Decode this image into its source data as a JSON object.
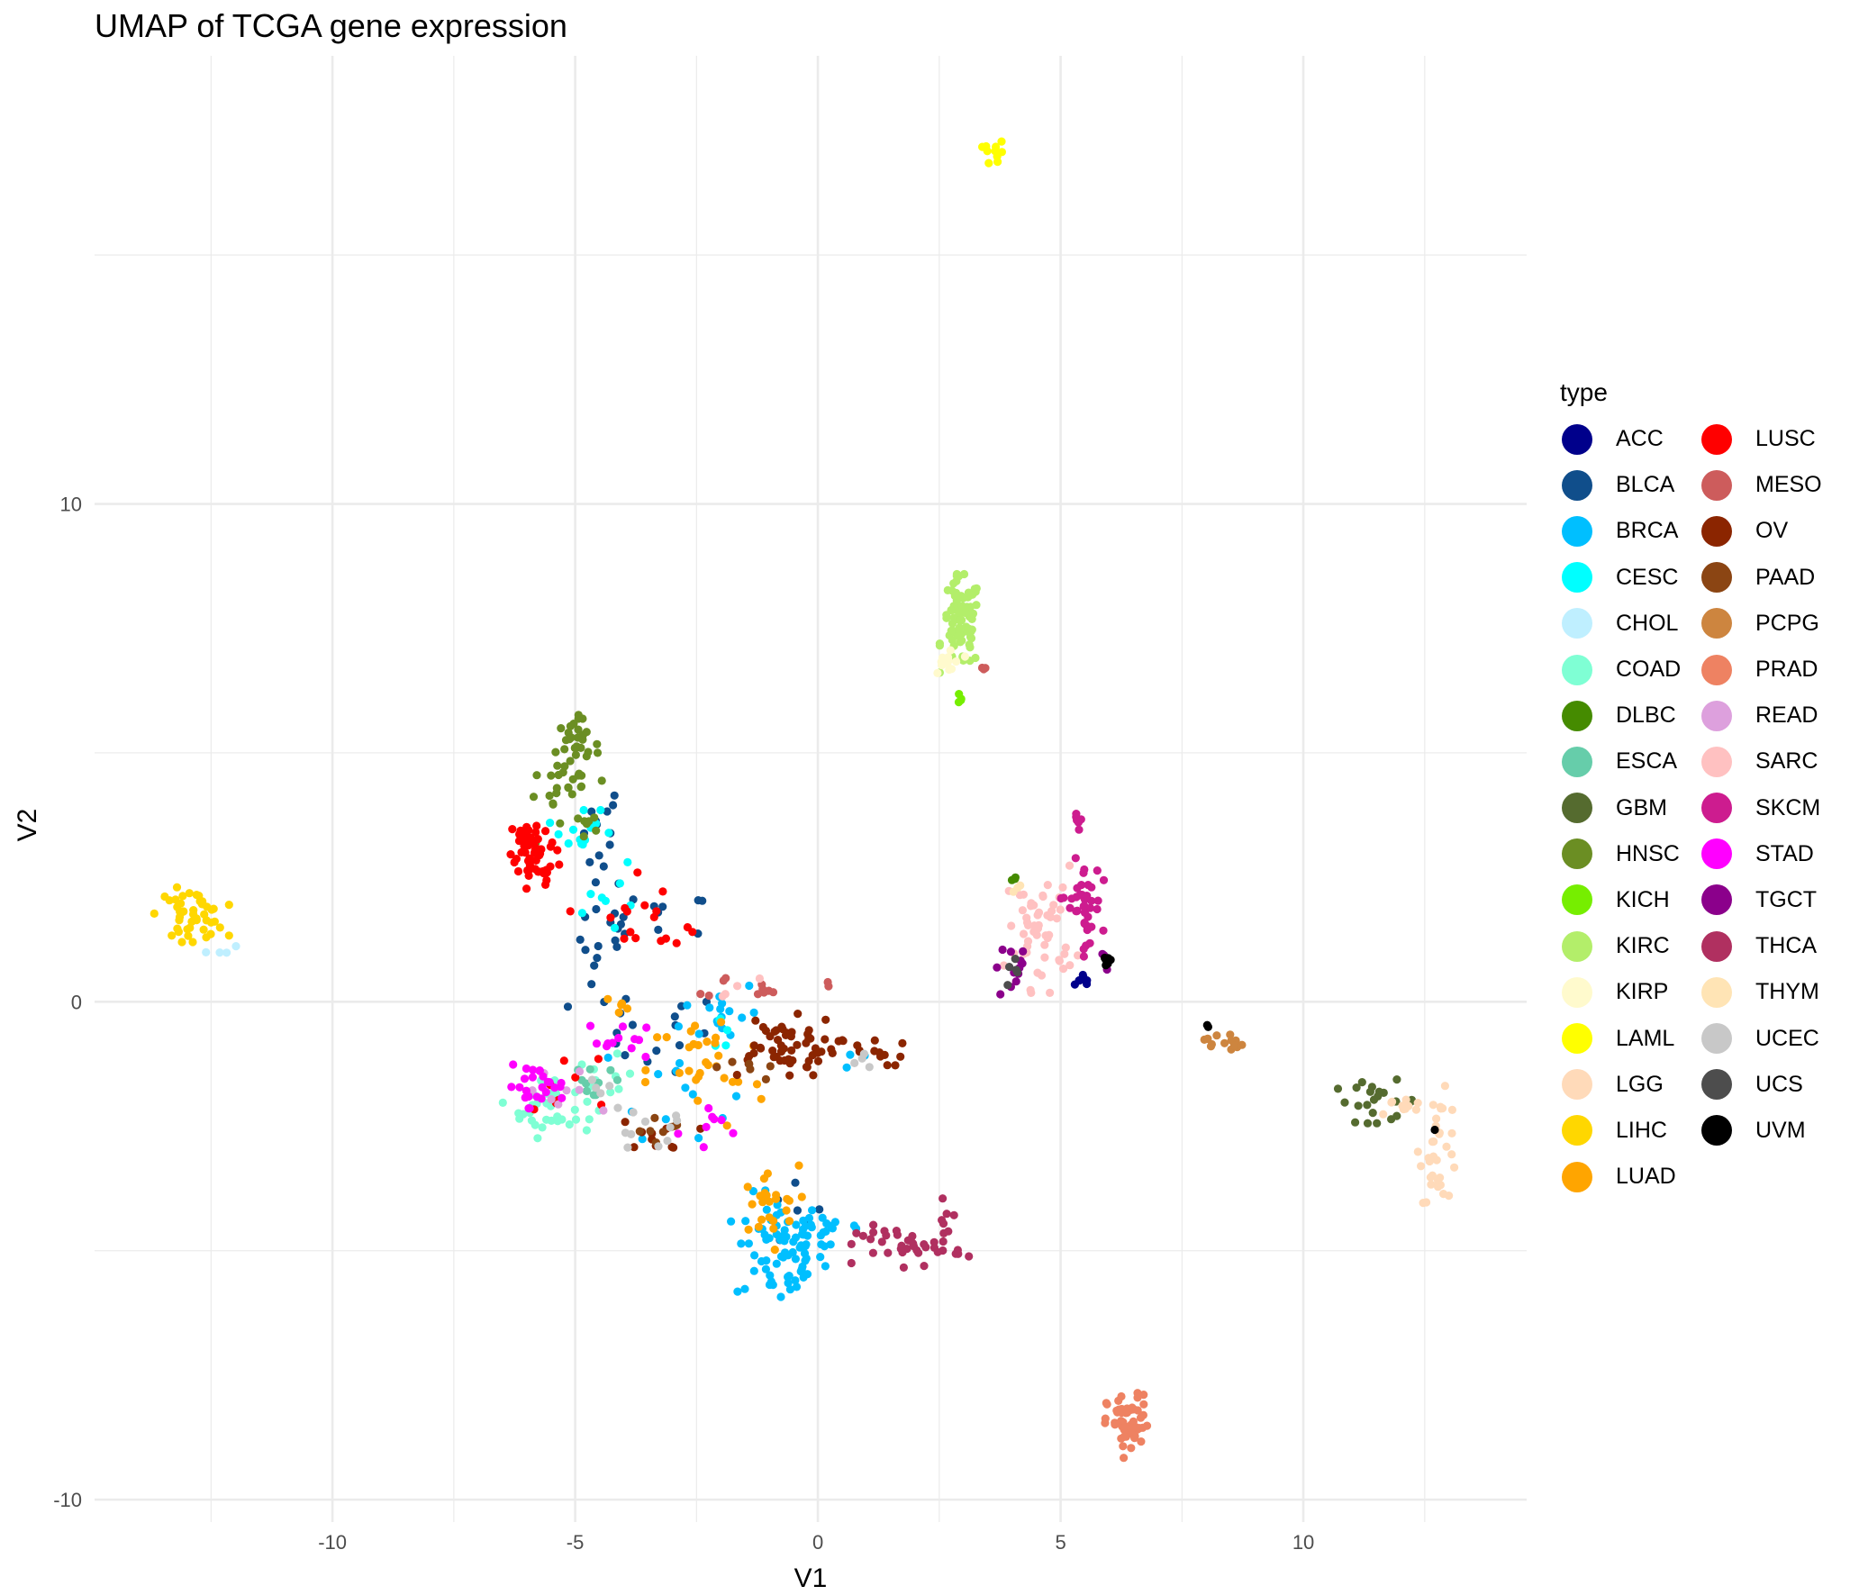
{
  "title": "UMAP of TCGA gene expression",
  "chart_data": {
    "type": "scatter",
    "title": "UMAP of TCGA gene expression",
    "xlabel": "V1",
    "ylabel": "V2",
    "xlim": [
      -14.9,
      14.6
    ],
    "ylim": [
      -10.45,
      19.0
    ],
    "x_ticks": [
      -10,
      -5,
      0,
      5,
      10
    ],
    "y_ticks": [
      -10,
      0,
      10
    ],
    "x_tick_labels": [
      "-10",
      "-5",
      "0",
      "5",
      "10"
    ],
    "y_tick_labels": [
      "-10",
      "0",
      "10"
    ],
    "grid": true,
    "legend_title": "type",
    "legend_position": "right",
    "series": [
      {
        "name": "ACC",
        "color": "#00008B",
        "clusters": [
          {
            "x": 5.5,
            "y": 0.4,
            "sx": 0.1,
            "sy": 0.1,
            "n": 8
          }
        ]
      },
      {
        "name": "BLCA",
        "color": "#104E8B",
        "clusters": [
          {
            "x": -4.5,
            "y": 3.5,
            "sx": 0.25,
            "sy": 0.5,
            "n": 12
          },
          {
            "x": -4.3,
            "y": 1.3,
            "sx": 0.3,
            "sy": 0.7,
            "n": 18
          },
          {
            "x": -3.2,
            "y": 1.6,
            "sx": 0.5,
            "sy": 0.3,
            "n": 10
          },
          {
            "x": -3.5,
            "y": -0.6,
            "sx": 0.8,
            "sy": 0.4,
            "n": 15
          },
          {
            "x": -0.5,
            "y": -4.3,
            "sx": 0.3,
            "sy": 0.4,
            "n": 6
          }
        ]
      },
      {
        "name": "BRCA",
        "color": "#00BFFF",
        "clusters": [
          {
            "x": -0.8,
            "y": -5.0,
            "sx": 0.45,
            "sy": 0.55,
            "n": 70
          },
          {
            "x": 0.2,
            "y": -4.6,
            "sx": 0.5,
            "sy": 0.25,
            "n": 20
          },
          {
            "x": -2.0,
            "y": -0.2,
            "sx": 0.4,
            "sy": 0.35,
            "n": 16
          },
          {
            "x": -3.0,
            "y": -1.7,
            "sx": 0.6,
            "sy": 0.5,
            "n": 12
          },
          {
            "x": 0.8,
            "y": -1.1,
            "sx": 0.2,
            "sy": 0.1,
            "n": 4
          }
        ]
      },
      {
        "name": "CESC",
        "color": "#00FFFF",
        "clusters": [
          {
            "x": -4.8,
            "y": 3.3,
            "sx": 0.4,
            "sy": 0.25,
            "n": 14
          },
          {
            "x": -4.4,
            "y": 2.1,
            "sx": 0.3,
            "sy": 0.4,
            "n": 7
          },
          {
            "x": -2.0,
            "y": -0.6,
            "sx": 0.3,
            "sy": 0.3,
            "n": 5
          }
        ]
      },
      {
        "name": "CHOL",
        "color": "#BFEFFF",
        "clusters": [
          {
            "x": -12.3,
            "y": 1.05,
            "sx": 0.15,
            "sy": 0.08,
            "n": 4
          }
        ]
      },
      {
        "name": "COAD",
        "color": "#7FFFD4",
        "clusters": [
          {
            "x": -5.5,
            "y": -2.1,
            "sx": 0.45,
            "sy": 0.3,
            "n": 35
          },
          {
            "x": -4.4,
            "y": -1.7,
            "sx": 0.3,
            "sy": 0.3,
            "n": 10
          }
        ]
      },
      {
        "name": "DLBC",
        "color": "#458B00",
        "clusters": [
          {
            "x": 4.05,
            "y": 2.45,
            "sx": 0.05,
            "sy": 0.06,
            "n": 3
          }
        ]
      },
      {
        "name": "ESCA",
        "color": "#66CDAA",
        "clusters": [
          {
            "x": -4.6,
            "y": -1.5,
            "sx": 0.35,
            "sy": 0.3,
            "n": 10
          }
        ]
      },
      {
        "name": "GBM",
        "color": "#556B2F",
        "clusters": [
          {
            "x": 11.5,
            "y": -2.0,
            "sx": 0.45,
            "sy": 0.2,
            "n": 22
          }
        ]
      },
      {
        "name": "HNSC",
        "color": "#6B8E23",
        "clusters": [
          {
            "x": -5.0,
            "y": 5.1,
            "sx": 0.25,
            "sy": 0.3,
            "n": 35
          },
          {
            "x": -5.3,
            "y": 4.3,
            "sx": 0.35,
            "sy": 0.3,
            "n": 15
          },
          {
            "x": -4.8,
            "y": 3.6,
            "sx": 0.25,
            "sy": 0.25,
            "n": 8
          },
          {
            "x": -5.9,
            "y": 3.25,
            "sx": 0.08,
            "sy": 0.1,
            "n": 3
          }
        ]
      },
      {
        "name": "KICH",
        "color": "#76EE00",
        "clusters": [
          {
            "x": 2.95,
            "y": 6.1,
            "sx": 0.05,
            "sy": 0.08,
            "n": 4
          }
        ]
      },
      {
        "name": "KIRC",
        "color": "#B3EE6A",
        "clusters": [
          {
            "x": 2.95,
            "y": 7.6,
            "sx": 0.2,
            "sy": 0.45,
            "n": 80
          }
        ]
      },
      {
        "name": "KIRP",
        "color": "#FFFACD",
        "clusters": [
          {
            "x": 2.7,
            "y": 6.8,
            "sx": 0.15,
            "sy": 0.2,
            "n": 14
          }
        ]
      },
      {
        "name": "LAML",
        "color": "#FFFF00",
        "clusters": [
          {
            "x": 3.65,
            "y": 17.05,
            "sx": 0.12,
            "sy": 0.12,
            "n": 10
          }
        ]
      },
      {
        "name": "LGG",
        "color": "#FFDAB9",
        "clusters": [
          {
            "x": 12.8,
            "y": -2.9,
            "sx": 0.2,
            "sy": 0.55,
            "n": 35
          },
          {
            "x": 12.0,
            "y": -2.1,
            "sx": 0.25,
            "sy": 0.12,
            "n": 10
          }
        ]
      },
      {
        "name": "LIHC",
        "color": "#FFD700",
        "clusters": [
          {
            "x": -12.9,
            "y": 1.75,
            "sx": 0.35,
            "sy": 0.25,
            "n": 45
          }
        ]
      },
      {
        "name": "LUAD",
        "color": "#FFA500",
        "clusters": [
          {
            "x": -1.1,
            "y": -4.1,
            "sx": 0.35,
            "sy": 0.4,
            "n": 25
          },
          {
            "x": -2.3,
            "y": -1.4,
            "sx": 0.6,
            "sy": 0.6,
            "n": 30
          },
          {
            "x": -4.0,
            "y": -0.2,
            "sx": 0.3,
            "sy": 0.3,
            "n": 5
          }
        ]
      },
      {
        "name": "LUSC",
        "color": "#FF0000",
        "clusters": [
          {
            "x": -5.9,
            "y": 3.2,
            "sx": 0.25,
            "sy": 0.25,
            "n": 40
          },
          {
            "x": -5.7,
            "y": 2.6,
            "sx": 0.25,
            "sy": 0.2,
            "n": 20
          },
          {
            "x": -4.0,
            "y": 1.7,
            "sx": 0.5,
            "sy": 0.5,
            "n": 12
          },
          {
            "x": -3.0,
            "y": 1.4,
            "sx": 0.35,
            "sy": 0.2,
            "n": 5
          },
          {
            "x": -5.0,
            "y": -1.5,
            "sx": 0.5,
            "sy": 0.4,
            "n": 8
          }
        ]
      },
      {
        "name": "MESO",
        "color": "#CD5C5C",
        "clusters": [
          {
            "x": -1.1,
            "y": 0.3,
            "sx": 0.6,
            "sy": 0.12,
            "n": 12
          },
          {
            "x": 3.45,
            "y": 6.6,
            "sx": 0.03,
            "sy": 0.1,
            "n": 3
          }
        ]
      },
      {
        "name": "OV",
        "color": "#8B2500",
        "clusters": [
          {
            "x": -0.8,
            "y": -0.9,
            "sx": 0.6,
            "sy": 0.3,
            "n": 55
          },
          {
            "x": 1.0,
            "y": -1.0,
            "sx": 0.4,
            "sy": 0.15,
            "n": 14
          },
          {
            "x": -3.3,
            "y": -2.7,
            "sx": 0.4,
            "sy": 0.15,
            "n": 10
          }
        ]
      },
      {
        "name": "PAAD",
        "color": "#8B4513",
        "clusters": [
          {
            "x": -3.3,
            "y": -2.6,
            "sx": 0.3,
            "sy": 0.15,
            "n": 8
          },
          {
            "x": -1.5,
            "y": -1.3,
            "sx": 0.3,
            "sy": 0.2,
            "n": 6
          }
        ]
      },
      {
        "name": "PCPG",
        "color": "#CD853F",
        "clusters": [
          {
            "x": 8.35,
            "y": -0.8,
            "sx": 0.2,
            "sy": 0.1,
            "n": 14
          }
        ]
      },
      {
        "name": "PRAD",
        "color": "#EE8262",
        "clusters": [
          {
            "x": 6.4,
            "y": -8.5,
            "sx": 0.22,
            "sy": 0.3,
            "n": 60
          }
        ]
      },
      {
        "name": "READ",
        "color": "#DDA0DD",
        "clusters": [
          {
            "x": -5.3,
            "y": -1.9,
            "sx": 0.4,
            "sy": 0.3,
            "n": 8
          }
        ]
      },
      {
        "name": "SARC",
        "color": "#FFC1C1",
        "clusters": [
          {
            "x": 4.6,
            "y": 1.5,
            "sx": 0.35,
            "sy": 0.6,
            "n": 55
          },
          {
            "x": -1.5,
            "y": 0.3,
            "sx": 0.3,
            "sy": 0.1,
            "n": 4
          }
        ]
      },
      {
        "name": "SKCM",
        "color": "#CD1C8F",
        "clusters": [
          {
            "x": 5.45,
            "y": 1.9,
            "sx": 0.2,
            "sy": 0.45,
            "n": 40
          },
          {
            "x": 5.35,
            "y": 3.7,
            "sx": 0.08,
            "sy": 0.12,
            "n": 7
          }
        ]
      },
      {
        "name": "STAD",
        "color": "#FF00FF",
        "clusters": [
          {
            "x": -5.8,
            "y": -1.7,
            "sx": 0.3,
            "sy": 0.2,
            "n": 25
          },
          {
            "x": -4.0,
            "y": -0.8,
            "sx": 0.4,
            "sy": 0.2,
            "n": 12
          },
          {
            "x": -2.0,
            "y": -2.5,
            "sx": 0.4,
            "sy": 0.3,
            "n": 8
          }
        ]
      },
      {
        "name": "TGCT",
        "color": "#8B008B",
        "clusters": [
          {
            "x": 4.1,
            "y": 0.7,
            "sx": 0.25,
            "sy": 0.25,
            "n": 12
          },
          {
            "x": 5.9,
            "y": 0.8,
            "sx": 0.05,
            "sy": 0.1,
            "n": 3
          }
        ]
      },
      {
        "name": "THCA",
        "color": "#B03060",
        "clusters": [
          {
            "x": 1.9,
            "y": -4.9,
            "sx": 0.55,
            "sy": 0.2,
            "n": 35
          },
          {
            "x": 2.65,
            "y": -4.5,
            "sx": 0.2,
            "sy": 0.25,
            "n": 10
          }
        ]
      },
      {
        "name": "THYM",
        "color": "#FFE4B5",
        "clusters": [
          {
            "x": 4.0,
            "y": 2.3,
            "sx": 0.1,
            "sy": 0.08,
            "n": 3
          }
        ]
      },
      {
        "name": "UCEC",
        "color": "#C8C8C8",
        "clusters": [
          {
            "x": -3.5,
            "y": -2.6,
            "sx": 0.5,
            "sy": 0.2,
            "n": 10
          },
          {
            "x": 1.0,
            "y": -1.2,
            "sx": 0.2,
            "sy": 0.1,
            "n": 4
          },
          {
            "x": -4.3,
            "y": -1.8,
            "sx": 0.2,
            "sy": 0.2,
            "n": 5
          }
        ]
      },
      {
        "name": "UCS",
        "color": "#4D4D4D",
        "clusters": [
          {
            "x": 4.1,
            "y": 0.6,
            "sx": 0.15,
            "sy": 0.12,
            "n": 5
          }
        ]
      },
      {
        "name": "UVM",
        "color": "#000000",
        "clusters": [
          {
            "x": 5.95,
            "y": 0.85,
            "sx": 0.04,
            "sy": 0.1,
            "n": 7
          },
          {
            "x": 8.0,
            "y": -0.5,
            "sx": 0.03,
            "sy": 0.03,
            "n": 2
          },
          {
            "x": 12.7,
            "y": -2.6,
            "sx": 0.03,
            "sy": 0.03,
            "n": 1
          }
        ]
      }
    ]
  }
}
